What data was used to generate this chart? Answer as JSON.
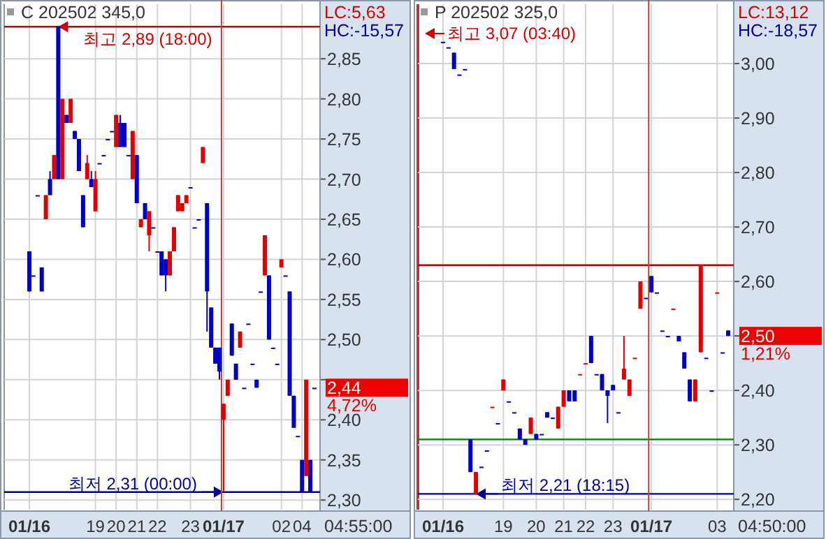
{
  "chart_data": [
    {
      "type": "candlestick",
      "title": "C 202502 345,0",
      "grid": true,
      "categories": [
        "01/16",
        null,
        null,
        null,
        null,
        null,
        null,
        null,
        null,
        null,
        null,
        null,
        null,
        null,
        null,
        null,
        "19",
        null,
        null,
        null,
        null,
        "20",
        null,
        null,
        null,
        null,
        "21",
        null,
        null,
        null,
        null,
        "22",
        null,
        null,
        null,
        null,
        null,
        null,
        null,
        "23",
        null,
        null,
        null,
        null,
        null,
        null,
        null,
        "01/17",
        null,
        null,
        null,
        null,
        null,
        null,
        null,
        null,
        null,
        null,
        null,
        null,
        null,
        "02",
        null,
        null,
        null,
        null,
        "04",
        null,
        null,
        null
      ],
      "ohlc": [
        [
          2.61,
          2.61,
          2.56,
          2.56
        ],
        [
          2.58,
          2.58,
          2.58,
          2.58
        ],
        [
          2.68,
          2.68,
          2.68,
          2.68
        ],
        [
          2.59,
          2.59,
          2.56,
          2.56
        ],
        [
          2.65,
          2.68,
          2.65,
          2.68
        ],
        [
          2.7,
          2.71,
          2.68,
          2.68
        ],
        [
          2.7,
          2.73,
          2.7,
          2.73
        ],
        [
          2.89,
          2.89,
          2.7,
          2.7
        ],
        [
          2.7,
          2.8,
          2.7,
          2.8
        ],
        [
          2.78,
          2.78,
          2.77,
          2.77
        ],
        [
          2.77,
          2.8,
          2.77,
          2.8
        ],
        [
          2.76,
          2.76,
          2.75,
          2.75
        ],
        [
          2.75,
          2.75,
          2.71,
          2.71
        ],
        [
          2.68,
          2.68,
          2.64,
          2.64
        ],
        [
          2.7,
          2.73,
          2.7,
          2.72
        ],
        [
          2.7,
          2.71,
          2.69,
          2.69
        ],
        [
          2.66,
          2.71,
          2.66,
          2.7
        ],
        [
          2.72,
          2.72,
          2.72,
          2.72
        ],
        [
          2.73,
          2.73,
          2.73,
          2.73
        ],
        [
          2.75,
          2.75,
          2.75,
          2.75
        ],
        [
          2.76,
          2.76,
          2.76,
          2.76
        ],
        [
          2.74,
          2.78,
          2.74,
          2.78
        ],
        [
          2.77,
          2.78,
          2.74,
          2.74
        ],
        [
          2.77,
          2.77,
          2.74,
          2.74
        ],
        [
          2.73,
          2.73,
          2.73,
          2.73
        ],
        [
          2.7,
          2.76,
          2.7,
          2.76
        ],
        [
          2.73,
          2.73,
          2.67,
          2.67
        ],
        [
          2.64,
          2.65,
          2.64,
          2.65
        ],
        [
          2.67,
          2.67,
          2.65,
          2.65
        ],
        [
          2.63,
          2.66,
          2.61,
          2.66
        ],
        [
          2.64,
          2.64,
          2.64,
          2.64
        ],
        [
          2.61,
          2.61,
          2.61,
          2.61
        ],
        [
          2.61,
          2.61,
          2.58,
          2.58
        ],
        [
          2.6,
          2.6,
          2.56,
          2.58
        ],
        [
          2.58,
          2.61,
          2.58,
          2.61
        ],
        [
          2.61,
          2.64,
          2.61,
          2.64
        ],
        [
          2.66,
          2.68,
          2.66,
          2.68
        ],
        [
          2.66,
          2.67,
          2.66,
          2.67
        ],
        [
          2.67,
          2.68,
          2.67,
          2.68
        ],
        [
          2.69,
          2.69,
          2.69,
          2.69
        ],
        [
          2.64,
          2.64,
          2.64,
          2.64
        ],
        [
          2.65,
          2.65,
          2.65,
          2.65
        ],
        [
          2.72,
          2.74,
          2.72,
          2.74
        ],
        [
          2.67,
          2.67,
          2.51,
          2.56
        ],
        [
          2.54,
          2.54,
          2.49,
          2.49
        ],
        [
          2.49,
          2.49,
          2.47,
          2.47
        ],
        [
          2.49,
          2.49,
          2.45,
          2.46
        ],
        [
          2.4,
          2.42,
          2.31,
          2.42
        ],
        [
          2.43,
          2.45,
          2.43,
          2.45
        ],
        [
          2.52,
          2.52,
          2.48,
          2.48
        ],
        [
          2.47,
          2.47,
          2.45,
          2.45
        ],
        [
          2.49,
          2.51,
          2.49,
          2.51
        ],
        [
          2.44,
          2.44,
          2.44,
          2.44
        ],
        [
          2.52,
          2.52,
          2.52,
          2.52
        ],
        [
          2.47,
          2.47,
          2.47,
          2.47
        ],
        [
          2.45,
          2.45,
          2.44,
          2.44
        ],
        [
          2.56,
          2.56,
          2.56,
          2.56
        ],
        [
          2.58,
          2.63,
          2.58,
          2.63
        ],
        [
          2.58,
          2.58,
          2.5,
          2.5
        ],
        [
          2.49,
          2.49,
          2.49,
          2.49
        ],
        [
          2.47,
          2.47,
          2.47,
          2.47
        ],
        [
          2.59,
          2.6,
          2.59,
          2.6
        ],
        [
          2.58,
          2.58,
          2.58,
          2.58
        ],
        [
          2.56,
          2.56,
          2.43,
          2.43
        ],
        [
          2.43,
          2.43,
          2.39,
          2.39
        ],
        [
          2.38,
          2.38,
          2.38,
          2.38
        ],
        [
          2.35,
          2.35,
          2.31,
          2.31
        ],
        [
          2.33,
          2.45,
          2.33,
          2.45
        ],
        [
          2.35,
          2.35,
          2.31,
          2.31
        ],
        [
          2.44,
          2.44,
          2.44,
          2.44
        ]
      ],
      "colors": [
        "#0000c8",
        "#0000c8",
        "#0000c8",
        "#0000c8",
        "#e00000",
        "#0000c8",
        "#e00000",
        "#0000c8",
        "#e00000",
        "#0000c8",
        "#e00000",
        "#0000c8",
        "#0000c8",
        "#0000c8",
        "#e00000",
        "#0000c8",
        "#e00000",
        "#0000c8",
        "#0000c8",
        "#0000c8",
        "#0000c8",
        "#e00000",
        "#0000c8",
        "#0000c8",
        "#0000c8",
        "#e00000",
        "#0000c8",
        "#e00000",
        "#0000c8",
        "#e00000",
        "#0000c8",
        "#0000c8",
        "#0000c8",
        "#0000c8",
        "#e00000",
        "#e00000",
        "#e00000",
        "#e00000",
        "#e00000",
        "#0000c8",
        "#0000c8",
        "#0000c8",
        "#e00000",
        "#0000c8",
        "#0000c8",
        "#0000c8",
        "#0000c8",
        "#e00000",
        "#e00000",
        "#0000c8",
        "#0000c8",
        "#e00000",
        "#0000c8",
        "#0000c8",
        "#0000c8",
        "#0000c8",
        "#0000c8",
        "#e00000",
        "#0000c8",
        "#0000c8",
        "#0000c8",
        "#e00000",
        "#0000c8",
        "#0000c8",
        "#0000c8",
        "#0000c8",
        "#0000c8",
        "#e00000",
        "#0000c8",
        "#0000c8"
      ],
      "ylim": [
        2.288,
        2.918
      ],
      "yticks": [
        {
          "value": 2.3,
          "label": "2,30"
        },
        {
          "value": 2.35,
          "label": "2,35"
        },
        {
          "value": 2.4,
          "label": "2,40"
        },
        {
          "value": 2.45,
          "label": null
        },
        {
          "value": 2.5,
          "label": "2,50"
        },
        {
          "value": 2.55,
          "label": "2,55"
        },
        {
          "value": 2.6,
          "label": "2,60"
        },
        {
          "value": 2.65,
          "label": "2,65"
        },
        {
          "value": 2.7,
          "label": "2,70"
        },
        {
          "value": 2.75,
          "label": "2,75"
        },
        {
          "value": 2.8,
          "label": "2,80"
        },
        {
          "value": 2.85,
          "label": "2,85"
        }
      ],
      "ref_lines": [
        {
          "axis": "y",
          "value": 2.89,
          "label": "최고 2,89 (18:00)",
          "color": "#d00000"
        },
        {
          "axis": "y",
          "value": 2.31,
          "label": "최저 2,31 (00:00)",
          "color": "#000090"
        },
        {
          "axis": "x",
          "value": "01/17",
          "color": "#c04040"
        }
      ],
      "annotations": [
        "LC:5,63",
        "HC:-15,57",
        "2,44",
        "4,72%",
        "04:55:00"
      ]
    },
    {
      "type": "candlestick",
      "title": "P 202502 325,0",
      "grid": true,
      "categories": [
        "01/16",
        null,
        null,
        null,
        null,
        null,
        null,
        null,
        null,
        null,
        null,
        "19",
        null,
        null,
        null,
        null,
        null,
        "20",
        null,
        null,
        null,
        null,
        "21",
        null,
        null,
        null,
        "22",
        null,
        null,
        null,
        null,
        "23",
        null,
        null,
        null,
        null,
        null,
        null,
        "01/17",
        null,
        null,
        null,
        null,
        null,
        null,
        null,
        null,
        null,
        null,
        null,
        "03",
        null,
        null
      ],
      "ohlc": [
        [
          3.04,
          3.04,
          3.04,
          3.04
        ],
        [
          3.03,
          3.03,
          3.03,
          3.03
        ],
        [
          3.02,
          3.02,
          2.99,
          2.99
        ],
        [
          2.98,
          2.98,
          2.98,
          2.98
        ],
        [
          2.99,
          2.99,
          2.99,
          2.99
        ],
        [
          2.31,
          2.31,
          2.25,
          2.25
        ],
        [
          2.21,
          2.25,
          2.21,
          2.25
        ],
        [
          2.26,
          2.26,
          2.26,
          2.26
        ],
        [
          2.29,
          2.29,
          2.29,
          2.29
        ],
        [
          2.37,
          2.37,
          2.37,
          2.37
        ],
        [
          2.34,
          2.34,
          2.34,
          2.34
        ],
        [
          2.4,
          2.42,
          2.4,
          2.42
        ],
        [
          2.38,
          2.38,
          2.38,
          2.38
        ],
        [
          2.36,
          2.36,
          2.36,
          2.36
        ],
        [
          2.33,
          2.33,
          2.31,
          2.31
        ],
        [
          2.31,
          2.31,
          2.3,
          2.3
        ],
        [
          2.32,
          2.35,
          2.32,
          2.35
        ],
        [
          2.32,
          2.32,
          2.31,
          2.31
        ],
        [
          2.32,
          2.32,
          2.32,
          2.32
        ],
        [
          2.36,
          2.36,
          2.35,
          2.35
        ],
        [
          2.35,
          2.35,
          2.35,
          2.35
        ],
        [
          2.33,
          2.37,
          2.33,
          2.37
        ],
        [
          2.37,
          2.4,
          2.37,
          2.4
        ],
        [
          2.4,
          2.4,
          2.38,
          2.38
        ],
        [
          2.4,
          2.4,
          2.38,
          2.38
        ],
        [
          2.43,
          2.43,
          2.43,
          2.43
        ],
        [
          2.45,
          2.45,
          2.45,
          2.45
        ],
        [
          2.5,
          2.5,
          2.45,
          2.45
        ],
        [
          2.43,
          2.43,
          2.43,
          2.43
        ],
        [
          2.43,
          2.43,
          2.4,
          2.4
        ],
        [
          2.4,
          2.4,
          2.34,
          2.39
        ],
        [
          2.41,
          2.41,
          2.4,
          2.4
        ],
        [
          2.36,
          2.36,
          2.36,
          2.36
        ],
        [
          2.42,
          2.5,
          2.42,
          2.44
        ],
        [
          2.39,
          2.42,
          2.39,
          2.42
        ],
        [
          2.46,
          2.46,
          2.46,
          2.46
        ],
        [
          2.55,
          2.6,
          2.55,
          2.6
        ],
        [
          2.57,
          2.57,
          2.57,
          2.57
        ],
        [
          2.61,
          2.61,
          2.58,
          2.58
        ],
        [
          2.58,
          2.58,
          2.58,
          2.58
        ],
        [
          2.51,
          2.51,
          2.51,
          2.51
        ],
        [
          2.5,
          2.5,
          2.5,
          2.5
        ],
        [
          2.55,
          2.55,
          2.55,
          2.55
        ],
        [
          2.5,
          2.5,
          2.49,
          2.49
        ],
        [
          2.47,
          2.47,
          2.44,
          2.44
        ],
        [
          2.42,
          2.42,
          2.38,
          2.38
        ],
        [
          2.38,
          2.42,
          2.38,
          2.42
        ],
        [
          2.47,
          2.63,
          2.47,
          2.63
        ],
        [
          2.46,
          2.46,
          2.46,
          2.46
        ],
        [
          2.4,
          2.4,
          2.4,
          2.4
        ],
        [
          2.58,
          2.58,
          2.58,
          2.58
        ],
        [
          2.47,
          2.47,
          2.47,
          2.47
        ],
        [
          2.51,
          2.51,
          2.5,
          2.5
        ]
      ],
      "colors": [
        "#0000c8",
        "#0000c8",
        "#0000c8",
        "#0000c8",
        "#0000c8",
        "#0000c8",
        "#e00000",
        "#0000c8",
        "#0000c8",
        "#e00000",
        "#0000c8",
        "#e00000",
        "#0000c8",
        "#0000c8",
        "#0000c8",
        "#0000c8",
        "#e00000",
        "#0000c8",
        "#0000c8",
        "#0000c8",
        "#0000c8",
        "#e00000",
        "#e00000",
        "#0000c8",
        "#0000c8",
        "#e00000",
        "#e00000",
        "#0000c8",
        "#0000c8",
        "#0000c8",
        "#0000c8",
        "#0000c8",
        "#0000c8",
        "#e00000",
        "#e00000",
        "#e00000",
        "#e00000",
        "#0000c8",
        "#0000c8",
        "#0000c8",
        "#0000c8",
        "#0000c8",
        "#e00000",
        "#0000c8",
        "#0000c8",
        "#0000c8",
        "#e00000",
        "#e00000",
        "#0000c8",
        "#0000c8",
        "#e00000",
        "#0000c8",
        "#0000c8"
      ],
      "ylim": [
        2.181,
        3.109
      ],
      "yticks": [
        {
          "value": 2.2,
          "label": "2,20"
        },
        {
          "value": 2.3,
          "label": "2,30"
        },
        {
          "value": 2.4,
          "label": "2,40"
        },
        {
          "value": 2.5,
          "label": null
        },
        {
          "value": 2.6,
          "label": "2,60"
        },
        {
          "value": 2.7,
          "label": "2,70"
        },
        {
          "value": 2.8,
          "label": "2,80"
        },
        {
          "value": 2.9,
          "label": "2,90"
        },
        {
          "value": 3.0,
          "label": "3,00"
        }
      ],
      "ref_lines": [
        {
          "axis": "y",
          "value": 2.63,
          "color": "#c00000"
        },
        {
          "axis": "y",
          "value": 2.31,
          "color": "#008000"
        },
        {
          "axis": "y",
          "value": 2.21,
          "label": "최저 2,21 (18:15)",
          "color": "#000090"
        },
        {
          "axis": "x",
          "value": "01/17",
          "color": "#c04040"
        }
      ],
      "annotations": [
        "LC:13,12",
        "HC:-18,57",
        "2,50",
        "1,21%",
        "04:50:00",
        "최고 3,07 (03:40)"
      ]
    }
  ]
}
